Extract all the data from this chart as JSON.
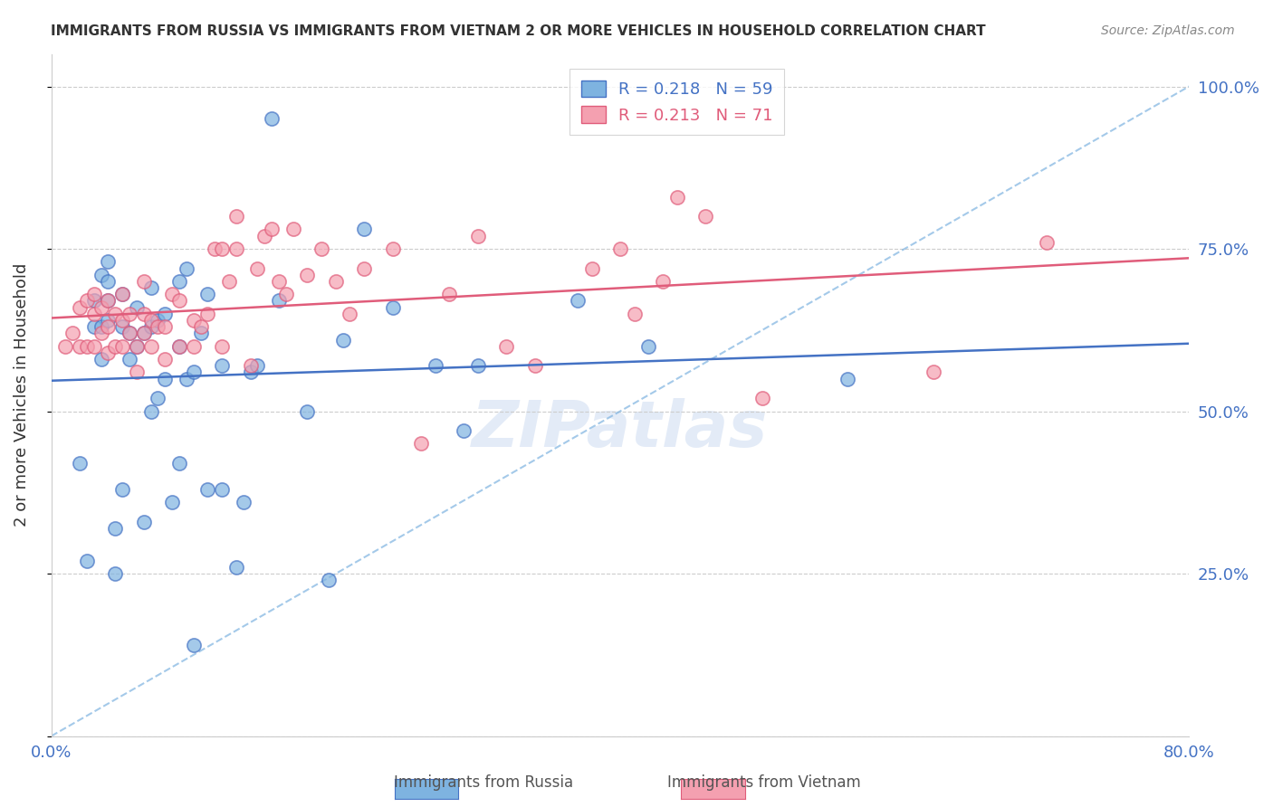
{
  "title": "IMMIGRANTS FROM RUSSIA VS IMMIGRANTS FROM VIETNAM 2 OR MORE VEHICLES IN HOUSEHOLD CORRELATION CHART",
  "source": "Source: ZipAtlas.com",
  "xlabel": "",
  "ylabel": "2 or more Vehicles in Household",
  "xlim": [
    0.0,
    0.8
  ],
  "ylim": [
    0.0,
    1.05
  ],
  "ytick_labels": [
    "",
    "25.0%",
    "50.0%",
    "75.0%",
    "100.0%"
  ],
  "ytick_vals": [
    0.0,
    0.25,
    0.5,
    0.75,
    1.0
  ],
  "xtick_labels": [
    "0.0%",
    "80.0%"
  ],
  "xtick_vals": [
    0.0,
    0.8
  ],
  "legend_russia": "R = 0.218   N = 59",
  "legend_vietnam": "R = 0.213   N = 71",
  "r_russia": 0.218,
  "n_russia": 59,
  "r_vietnam": 0.213,
  "n_vietnam": 71,
  "color_russia": "#7eb3e0",
  "color_vietnam": "#f4a0b0",
  "trendline_russia": "#4472c4",
  "trendline_vietnam": "#e05c7a",
  "trendline_diag": "#7eb3e0",
  "watermark": "ZIPatlas",
  "russia_x": [
    0.02,
    0.025,
    0.03,
    0.03,
    0.035,
    0.035,
    0.035,
    0.04,
    0.04,
    0.04,
    0.04,
    0.045,
    0.045,
    0.05,
    0.05,
    0.05,
    0.055,
    0.055,
    0.06,
    0.06,
    0.065,
    0.065,
    0.07,
    0.07,
    0.07,
    0.075,
    0.075,
    0.08,
    0.08,
    0.085,
    0.09,
    0.09,
    0.09,
    0.095,
    0.095,
    0.1,
    0.1,
    0.105,
    0.11,
    0.11,
    0.12,
    0.12,
    0.13,
    0.135,
    0.14,
    0.145,
    0.155,
    0.16,
    0.18,
    0.195,
    0.205,
    0.22,
    0.24,
    0.27,
    0.29,
    0.3,
    0.37,
    0.42,
    0.56
  ],
  "russia_y": [
    0.42,
    0.27,
    0.63,
    0.67,
    0.58,
    0.63,
    0.71,
    0.64,
    0.67,
    0.7,
    0.73,
    0.25,
    0.32,
    0.38,
    0.63,
    0.68,
    0.58,
    0.62,
    0.6,
    0.66,
    0.33,
    0.62,
    0.5,
    0.63,
    0.69,
    0.52,
    0.64,
    0.55,
    0.65,
    0.36,
    0.42,
    0.6,
    0.7,
    0.55,
    0.72,
    0.14,
    0.56,
    0.62,
    0.38,
    0.68,
    0.38,
    0.57,
    0.26,
    0.36,
    0.56,
    0.57,
    0.95,
    0.67,
    0.5,
    0.24,
    0.61,
    0.78,
    0.66,
    0.57,
    0.47,
    0.57,
    0.67,
    0.6,
    0.55
  ],
  "vietnam_x": [
    0.01,
    0.015,
    0.02,
    0.02,
    0.025,
    0.025,
    0.03,
    0.03,
    0.03,
    0.035,
    0.035,
    0.04,
    0.04,
    0.04,
    0.045,
    0.045,
    0.05,
    0.05,
    0.05,
    0.055,
    0.055,
    0.06,
    0.06,
    0.065,
    0.065,
    0.065,
    0.07,
    0.07,
    0.075,
    0.08,
    0.08,
    0.085,
    0.09,
    0.09,
    0.1,
    0.1,
    0.105,
    0.11,
    0.115,
    0.12,
    0.12,
    0.125,
    0.13,
    0.13,
    0.14,
    0.145,
    0.15,
    0.155,
    0.16,
    0.165,
    0.17,
    0.18,
    0.19,
    0.2,
    0.21,
    0.22,
    0.24,
    0.26,
    0.28,
    0.3,
    0.32,
    0.34,
    0.38,
    0.4,
    0.41,
    0.43,
    0.44,
    0.46,
    0.5,
    0.62,
    0.7
  ],
  "vietnam_y": [
    0.6,
    0.62,
    0.6,
    0.66,
    0.6,
    0.67,
    0.6,
    0.65,
    0.68,
    0.62,
    0.66,
    0.59,
    0.63,
    0.67,
    0.6,
    0.65,
    0.6,
    0.64,
    0.68,
    0.62,
    0.65,
    0.56,
    0.6,
    0.62,
    0.65,
    0.7,
    0.6,
    0.64,
    0.63,
    0.58,
    0.63,
    0.68,
    0.6,
    0.67,
    0.6,
    0.64,
    0.63,
    0.65,
    0.75,
    0.6,
    0.75,
    0.7,
    0.75,
    0.8,
    0.57,
    0.72,
    0.77,
    0.78,
    0.7,
    0.68,
    0.78,
    0.71,
    0.75,
    0.7,
    0.65,
    0.72,
    0.75,
    0.45,
    0.68,
    0.77,
    0.6,
    0.57,
    0.72,
    0.75,
    0.65,
    0.7,
    0.83,
    0.8,
    0.52,
    0.56,
    0.76
  ]
}
